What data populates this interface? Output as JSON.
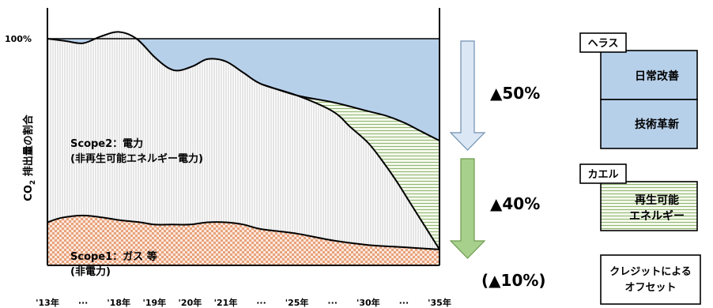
{
  "chart_data": {
    "type": "area",
    "ylabel": "CO2 排出量の割合",
    "ylabel_main": "CO",
    "ylabel_sub": "2",
    "ylabel_rest": " 排出量の割合",
    "ytick": "100%",
    "x_ticks": [
      "'13年",
      "···",
      "'18年",
      "'19年",
      "'20年",
      "'21年",
      "···",
      "'25年",
      "···",
      "'30年",
      "···",
      "'35年"
    ],
    "series": [
      {
        "name": "Scope1：ガス 等",
        "name_line1": "Scope1：ガス 等",
        "name_line2": "(非電力)",
        "x": [
          0,
          0.4,
          1.0,
          1.6,
          2.0,
          2.6,
          3.0,
          3.5,
          4.0,
          4.5,
          5.0,
          5.5,
          6.0,
          7.0,
          8.0,
          9.0,
          10.0,
          11.0
        ],
        "values": [
          19,
          21,
          22,
          21,
          20,
          19,
          18,
          18,
          18,
          19,
          19,
          18,
          16,
          14,
          11,
          9,
          8,
          7
        ]
      },
      {
        "name": "Scope2：電力",
        "name_line1": "Scope2：電力",
        "name_line2": "(非再生可能エネルギー電力)",
        "x": [
          0,
          0.5,
          1.0,
          1.5,
          2.0,
          2.5,
          3.0,
          3.4,
          3.7,
          4.1,
          4.5,
          5.0,
          5.5,
          6.0,
          7.0,
          8.0,
          8.5,
          9.0,
          9.4,
          9.8,
          10.2,
          10.6,
          11.0
        ],
        "values": [
          100,
          99,
          98,
          101,
          103,
          100,
          92,
          87,
          86,
          88,
          91,
          90,
          85,
          80,
          75,
          68,
          61,
          54,
          46,
          37,
          27,
          17,
          7
        ]
      },
      {
        "name": "再生可能エネルギー",
        "x": [
          6.0,
          7.0,
          8.0,
          9.0,
          9.5,
          10.0,
          10.5,
          11.0
        ],
        "values": [
          80,
          75,
          72,
          68,
          66,
          63,
          59,
          55
        ]
      }
    ],
    "reduction_labels": [
      "▲50%",
      "▲40%",
      "(▲10%)"
    ],
    "legend_groups": [
      {
        "title": "ヘラス",
        "items": [
          "日常改善",
          "技術革新"
        ]
      },
      {
        "title": "カエル",
        "items": [
          "再生可能",
          "エネルギー"
        ]
      },
      {
        "title": "",
        "items": [
          "クレジットによる",
          "オフセット"
        ]
      }
    ],
    "colors": {
      "reduction": "#b7d0ea",
      "scope2_hatch": "#999999",
      "renewable_hatch": "#77a352",
      "renewable_bg": "#f2f8ea",
      "scope1_check": "#e8a27c",
      "scope1_bg": "#fbe8dc",
      "arrow_blue": "#dbe7f4",
      "arrow_blue_stroke": "#6f8fb0",
      "arrow_green": "#a8d08d",
      "arrow_green_stroke": "#6d9a4c"
    }
  }
}
